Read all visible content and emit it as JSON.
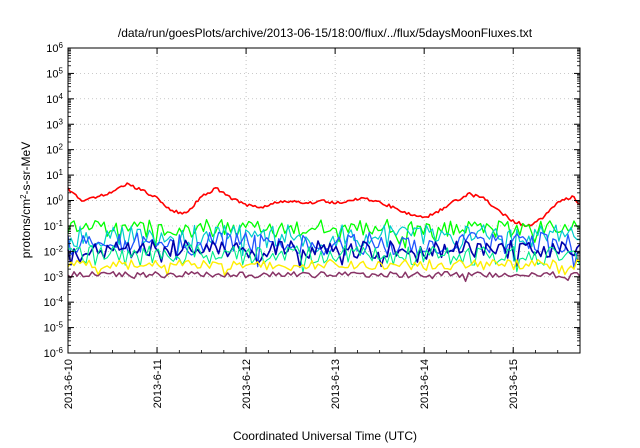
{
  "chart_data": {
    "type": "line",
    "title": "/data/run/goesPlots/archive/2013-06-15/18:00/flux/../flux/5daysMoonFluxes.txt",
    "xlabel": "Coordinated Universal Time (UTC)",
    "ylabel": "protons/cm²-s-sr-MeV",
    "ylabel_parts": {
      "pre": "protons/cm",
      "sup": "2",
      "post": "-s-sr-MeV"
    },
    "y_scale": "log",
    "ylim": [
      1e-06,
      1000000.0
    ],
    "y_ticks": [
      {
        "base": "10",
        "exp": "-6"
      },
      {
        "base": "10",
        "exp": "-5"
      },
      {
        "base": "10",
        "exp": "-4"
      },
      {
        "base": "10",
        "exp": "-3"
      },
      {
        "base": "10",
        "exp": "-2"
      },
      {
        "base": "10",
        "exp": "-1"
      },
      {
        "base": "10",
        "exp": "0"
      },
      {
        "base": "10",
        "exp": "1"
      },
      {
        "base": "10",
        "exp": "2"
      },
      {
        "base": "10",
        "exp": "3"
      },
      {
        "base": "10",
        "exp": "4"
      },
      {
        "base": "10",
        "exp": "5"
      },
      {
        "base": "10",
        "exp": "6"
      }
    ],
    "xlim": [
      "2013-06-10",
      "2013-06-15 18:00"
    ],
    "x_ticks": [
      "2013-6-10",
      "2013-6-11",
      "2013-6-12",
      "2013-6-13",
      "2013-6-14",
      "2013-6-15"
    ],
    "grid": true,
    "series": [
      {
        "color": "#ff0000",
        "width": 1.6,
        "x": [
          "2013-06-10 00:00",
          "2013-06-10 04:00",
          "2013-06-10 08:00",
          "2013-06-10 12:00",
          "2013-06-10 16:00",
          "2013-06-10 20:00",
          "2013-06-11 00:00",
          "2013-06-11 04:00",
          "2013-06-11 08:00",
          "2013-06-11 12:00",
          "2013-06-11 16:00",
          "2013-06-11 20:00",
          "2013-06-12 00:00",
          "2013-06-12 04:00",
          "2013-06-12 08:00",
          "2013-06-12 12:00",
          "2013-06-12 16:00",
          "2013-06-12 20:00",
          "2013-06-13 00:00",
          "2013-06-13 04:00",
          "2013-06-13 08:00",
          "2013-06-13 12:00",
          "2013-06-13 16:00",
          "2013-06-13 20:00",
          "2013-06-14 00:00",
          "2013-06-14 04:00",
          "2013-06-14 08:00",
          "2013-06-14 12:00",
          "2013-06-14 16:00",
          "2013-06-14 20:00",
          "2013-06-15 00:00",
          "2013-06-15 04:00",
          "2013-06-15 08:00",
          "2013-06-15 12:00",
          "2013-06-15 16:00",
          "2013-06-15 18:00"
        ],
        "y": [
          3.0,
          1.0,
          1.5,
          2.0,
          4.5,
          2.5,
          1.2,
          0.4,
          0.3,
          1.5,
          3.0,
          1.2,
          0.7,
          0.5,
          0.8,
          1.0,
          0.7,
          1.0,
          0.8,
          1.0,
          1.2,
          0.9,
          0.5,
          0.3,
          0.2,
          0.4,
          0.9,
          1.8,
          1.2,
          0.4,
          0.15,
          0.1,
          0.2,
          0.8,
          1.5,
          0.7
        ]
      },
      {
        "color": "#00ff00",
        "width": 1.3,
        "level": 0.08,
        "amp": 0.35,
        "seed": 3,
        "x": [
          "2013-06-10 00:00",
          "2013-06-15 18:00"
        ]
      },
      {
        "color": "#00cccc",
        "width": 1.2,
        "level": 0.04,
        "amp": 0.45,
        "seed": 7,
        "x": [
          "2013-06-10 00:00",
          "2013-06-15 18:00"
        ]
      },
      {
        "color": "#2255ff",
        "width": 1.3,
        "level": 0.02,
        "amp": 0.45,
        "seed": 11,
        "x": [
          "2013-06-10 00:00",
          "2013-06-15 18:00"
        ]
      },
      {
        "color": "#0000aa",
        "width": 1.6,
        "level": 0.012,
        "amp": 0.35,
        "seed": 19,
        "x": [
          "2013-06-10 00:00",
          "2013-06-15 18:00"
        ]
      },
      {
        "color": "#00ee88",
        "width": 1.1,
        "level": 0.007,
        "amp": 0.4,
        "seed": 23,
        "x": [
          "2013-06-10 00:00",
          "2013-06-15 18:00"
        ]
      },
      {
        "color": "#ffee00",
        "width": 1.4,
        "level": 0.003,
        "amp": 0.2,
        "seed": 29,
        "x": [
          "2013-06-10 00:00",
          "2013-06-15 18:00"
        ]
      },
      {
        "color": "#883366",
        "width": 1.5,
        "level": 0.0012,
        "amp": 0.12,
        "seed": 31,
        "x": [
          "2013-06-10 00:00",
          "2013-06-15 18:00"
        ]
      }
    ]
  }
}
